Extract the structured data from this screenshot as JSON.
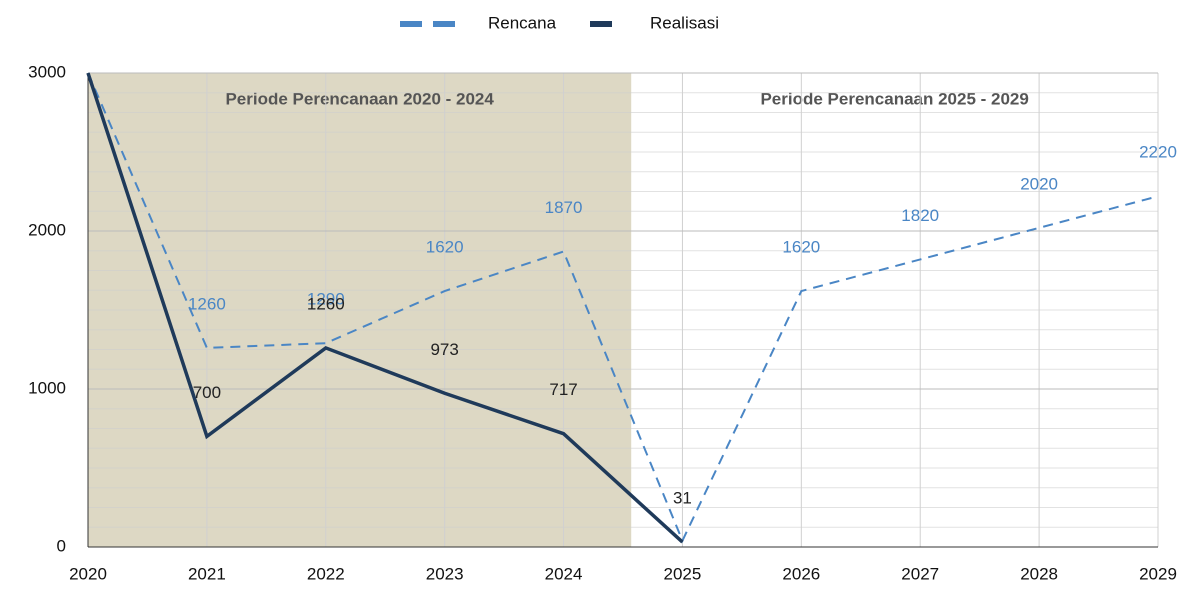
{
  "chart_data": {
    "type": "line",
    "x": [
      2020,
      2021,
      2022,
      2023,
      2024,
      2025,
      2026,
      2027,
      2028,
      2029
    ],
    "series": [
      {
        "name": "Rencana",
        "color": "#4a86c5",
        "dash": true,
        "values": [
          3000,
          1260,
          1290,
          1620,
          1870,
          40,
          1620,
          1820,
          2020,
          2220
        ],
        "value_labels": [
          null,
          "1260",
          "1290",
          "1620",
          "1870",
          null,
          "1620",
          "1820",
          "2020",
          "2220"
        ]
      },
      {
        "name": "Realisasi",
        "color": "#1f3a5a",
        "dash": false,
        "values": [
          3000,
          700,
          1260,
          973,
          717,
          31,
          null,
          null,
          null,
          null
        ],
        "value_labels": [
          null,
          "700",
          "1260",
          "973",
          "717",
          "31",
          null,
          null,
          null,
          null
        ]
      }
    ],
    "bands": [
      {
        "label": "Periode Perencanaan 2020 - 2024",
        "from": 2020,
        "to": 2024.57,
        "color": "#ddd8c4"
      },
      {
        "label": "Periode Perencanaan 2025 - 2029",
        "from": 2024.57,
        "to": 2029,
        "color": "#ffffff"
      }
    ],
    "xlim": [
      2020,
      2029
    ],
    "xticks": [
      2020,
      2021,
      2022,
      2023,
      2024,
      2025,
      2026,
      2027,
      2028,
      2029
    ],
    "ylim": [
      0,
      3000
    ],
    "yticks": [
      0,
      1000,
      2000,
      3000
    ],
    "grid": true,
    "minor_grid_divisions": 8,
    "legend": "top"
  }
}
